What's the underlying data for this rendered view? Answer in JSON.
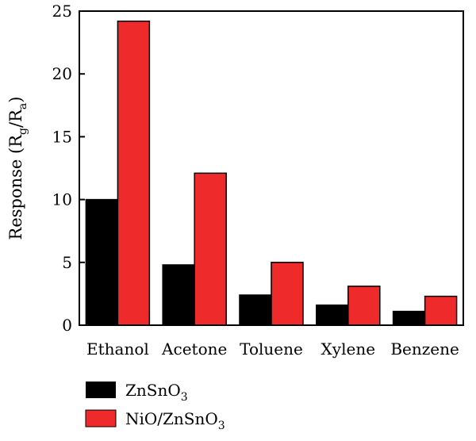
{
  "chart_data": {
    "type": "bar",
    "categories": [
      "Ethanol",
      "Acetone",
      "Toluene",
      "Xylene",
      "Benzene"
    ],
    "series": [
      {
        "name": "ZnSnO",
        "subscript": "3",
        "color": "#000000",
        "values": [
          10.0,
          4.8,
          2.4,
          1.6,
          1.1
        ]
      },
      {
        "name": "NiO/ZnSnO",
        "subscript": "3",
        "color": "#ee2a2a",
        "values": [
          24.2,
          12.1,
          5.0,
          3.1,
          2.3
        ]
      }
    ],
    "ylabel": {
      "prefix": "Response (R",
      "sub1": "g",
      "mid": "/R",
      "sub2": "a",
      "suffix": ")"
    },
    "ylim": [
      0,
      25
    ],
    "yticks": [
      0,
      5,
      10,
      15,
      20,
      25
    ],
    "grid": false,
    "legend": "bottom-left"
  }
}
